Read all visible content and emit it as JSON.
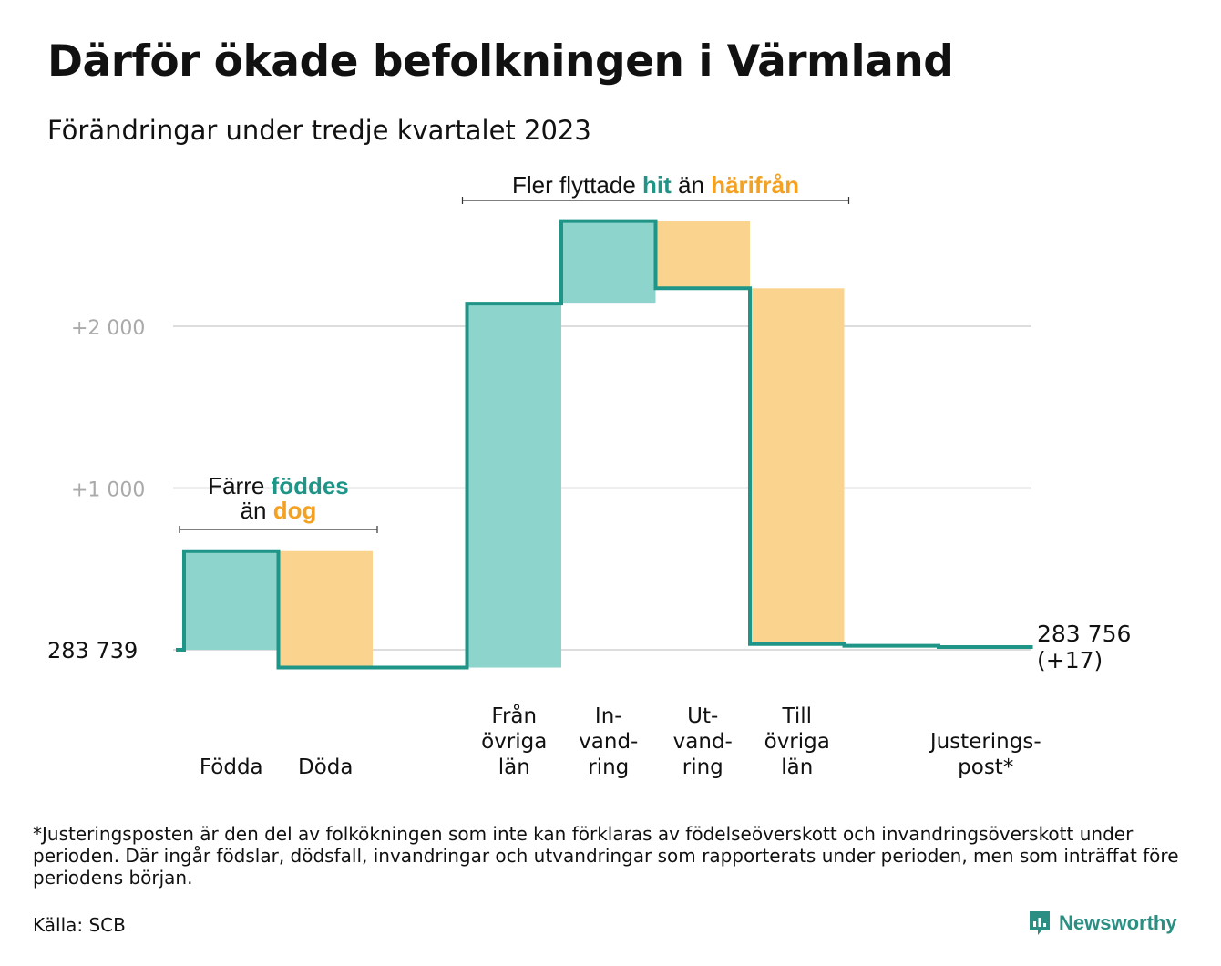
{
  "title": "Därför ökade befolkningen i Värmland",
  "subtitle": "Förändringar under tredje kvartalet 2023",
  "footnote": "*Justeringsposten är den del av folkökningen som inte kan förklaras av födelseöverskott och invandringsöverskott under perioden. Där ingår födslar, dödsfall, invandringar och utvandringar som rapporterats under perioden, men som inträffat före periodens början.",
  "source": "Källa: SCB",
  "logo": {
    "text": "Newsworthy",
    "icon": "chart-bubble-icon"
  },
  "colors": {
    "increase": "#8dd4cc",
    "decrease": "#fad48e",
    "line": "#1e9587",
    "teal_text": "#1e9587",
    "orange_text": "#f4a020",
    "grid": "#dddddd",
    "tick_text": "#aaaaaa"
  },
  "chart_data": {
    "type": "waterfall",
    "start_value": 283739,
    "start_label": "283   739",
    "end_label_lines": [
      "283 756",
      "(+17)"
    ],
    "y_ticks": [
      {
        "value": 2000,
        "label": "+2   000"
      },
      {
        "value": 1000,
        "label": "+1   000"
      }
    ],
    "grid": true,
    "steps": [
      {
        "label_lines": [
          "Födda"
        ],
        "delta": 610,
        "kind": "increase"
      },
      {
        "label_lines": [
          "Döda"
        ],
        "delta": -720,
        "kind": "decrease"
      },
      {
        "label_lines": [],
        "delta": 0,
        "kind": "gap"
      },
      {
        "label_lines": [
          "Från",
          "övriga",
          "län"
        ],
        "delta": 2250,
        "kind": "increase"
      },
      {
        "label_lines": [
          "In-",
          "vand-",
          "ring"
        ],
        "delta": 510,
        "kind": "increase"
      },
      {
        "label_lines": [
          "Ut-",
          "vand-",
          "ring"
        ],
        "delta": -415,
        "kind": "decrease"
      },
      {
        "label_lines": [
          "Till",
          "övriga",
          "län"
        ],
        "delta": -2200,
        "kind": "decrease"
      },
      {
        "label_lines": [],
        "delta": -10,
        "kind": "none"
      },
      {
        "label_lines": [
          "Justerings-",
          "post*"
        ],
        "delta": -8,
        "kind": "none"
      }
    ],
    "annotations": [
      {
        "parts": [
          {
            "text": "Färre ",
            "style": "plain"
          },
          {
            "text": "föddes",
            "style": "teal"
          }
        ],
        "parts2": [
          {
            "text": "än ",
            "style": "plain"
          },
          {
            "text": "dog",
            "style": "orange"
          }
        ],
        "from_step": 0,
        "to_step": 1
      },
      {
        "parts": [
          {
            "text": "Fler flyttade ",
            "style": "plain"
          },
          {
            "text": "hit",
            "style": "teal"
          },
          {
            "text": "  än ",
            "style": "plain"
          },
          {
            "text": "härifrån",
            "style": "orange"
          }
        ],
        "from_step": 3,
        "to_step": 6
      }
    ]
  }
}
